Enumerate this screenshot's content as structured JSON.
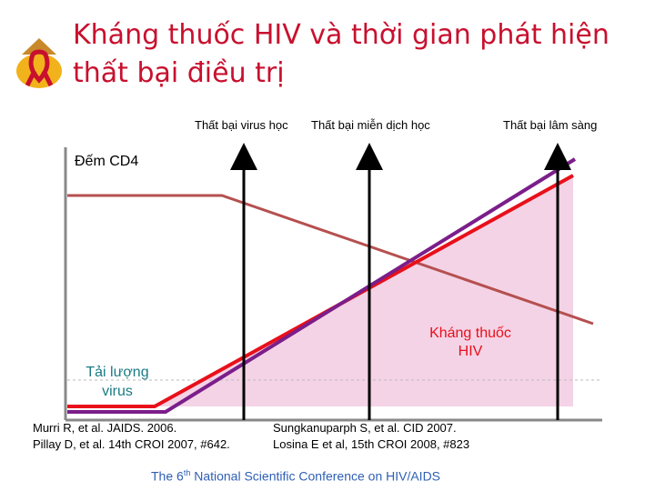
{
  "title_line1": "Kháng thuốc HIV và thời gian phát hiện",
  "title_line2": "thất bại điều trị",
  "events": {
    "virologic": "Thất bại virus học",
    "immunologic": "Thất bại miễn dịch học",
    "clinical": "Thất bại lâm sàng"
  },
  "labels": {
    "cd4": "Đếm CD4",
    "viral_load_line1": "Tải lượng",
    "viral_load_line2": "virus",
    "resistance_line1": "Kháng thuốc",
    "resistance_line2": "HIV"
  },
  "references": {
    "left_line1": "Murri R, et al. JAIDS. 2006.",
    "left_line2": "Pillay D, et al. 14th CROI 2007, #642.",
    "right_line1": "Sungkanuparph S, et al. CID 2007.",
    "right_line2": "Losina E et al, 15th CROI 2008, #823"
  },
  "footer": {
    "pre": "The 6",
    "sup": "th",
    "post": " National Scientific Conference on HIV/AIDS"
  },
  "colors": {
    "title": "#c8102e",
    "viral_load": "#e8101a",
    "resistance": "#7b1e8a",
    "cd4": "#b5504f",
    "fill": "#f4d3e6",
    "footer": "#2e5fb5"
  }
}
